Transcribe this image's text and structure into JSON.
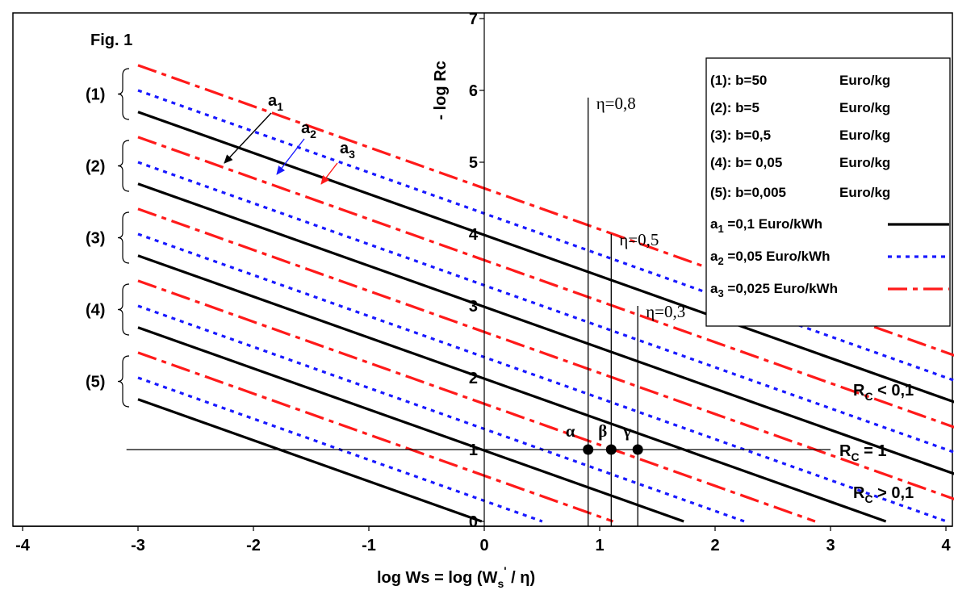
{
  "chart_data": {
    "type": "line",
    "title": "Fig. 1",
    "xlabel": "log Ws = log (W",
    "xlabel_sub": "s",
    "xlabel_sup": "'",
    "xlabel_end": " / η)",
    "ylabel": "- log Rc",
    "xlim": [
      -4,
      4
    ],
    "ylim": [
      0,
      7
    ],
    "x_ticks": [
      "-4",
      "-3",
      "-2",
      "-1",
      "0",
      "1",
      "2",
      "3",
      "4"
    ],
    "y_ticks": [
      "0",
      "1",
      "2",
      "3",
      "4",
      "5",
      "6",
      "7"
    ],
    "grid": false,
    "slope": -0.571,
    "x_start": -3,
    "groups": [
      {
        "label": "(1)",
        "legend": "(1): b=50",
        "unit": "Euro/kg"
      },
      {
        "label": "(2)",
        "legend": "(2): b=5",
        "unit": "Euro/kg"
      },
      {
        "label": "(3)",
        "legend": "(3): b=0,5",
        "unit": "Euro/kg"
      },
      {
        "label": "(4)",
        "legend": "(4): b= 0,05",
        "unit": "Euro/kg"
      },
      {
        "label": "(5)",
        "legend": "(5): b=0,005",
        "unit": "Euro/kg"
      }
    ],
    "series": [
      {
        "name": "a",
        "sub": "1",
        "legend_rest": " =0,1 Euro/kWh",
        "color": "#000000",
        "dash": "solid",
        "lines": [
          {
            "group": 1,
            "y_at_x_start": 5.7
          },
          {
            "group": 2,
            "y_at_x_start": 4.7
          },
          {
            "group": 3,
            "y_at_x_start": 3.7
          },
          {
            "group": 4,
            "y_at_x_start": 2.7
          },
          {
            "group": 5,
            "y_at_x_start": 1.7
          }
        ]
      },
      {
        "name": "a",
        "sub": "2",
        "legend_rest": " =0,05 Euro/kWh",
        "color": "#1a1aff",
        "dash": "dotted",
        "lines": [
          {
            "group": 1,
            "y_at_x_start": 6.0
          },
          {
            "group": 2,
            "y_at_x_start": 5.0
          },
          {
            "group": 3,
            "y_at_x_start": 4.0
          },
          {
            "group": 4,
            "y_at_x_start": 3.0
          },
          {
            "group": 5,
            "y_at_x_start": 2.0
          }
        ]
      },
      {
        "name": "a",
        "sub": "3",
        "legend_rest": " =0,025 Euro/kWh",
        "color": "#ff1a1a",
        "dash": "dashdot",
        "lines": [
          {
            "group": 1,
            "y_at_x_start": 6.35
          },
          {
            "group": 2,
            "y_at_x_start": 5.35
          },
          {
            "group": 3,
            "y_at_x_start": 4.35
          },
          {
            "group": 4,
            "y_at_x_start": 3.35
          },
          {
            "group": 5,
            "y_at_x_start": 2.35
          }
        ]
      }
    ],
    "eta_lines": [
      {
        "label": "η=0,8",
        "x": 0.9,
        "y_top": 5.9
      },
      {
        "label": "η=0,5",
        "x": 1.1,
        "y_top": 4.0
      },
      {
        "label": "η=0,3",
        "x": 1.33,
        "y_top": 3.0
      }
    ],
    "points": [
      {
        "label": "α",
        "x": 0.9,
        "y": 1.0
      },
      {
        "label": "β",
        "x": 1.1,
        "y": 1.0
      },
      {
        "label": "γ",
        "x": 1.33,
        "y": 1.0
      }
    ],
    "rc_line": {
      "y": 1.0,
      "x_from": -3.1,
      "x_to": 3.0
    },
    "annotations": {
      "rc_lt_pre": "R",
      "rc_lt_sub": "C",
      "rc_lt_post": " < 0,1",
      "rc_eq_pre": "R",
      "rc_eq_sub": "C",
      "rc_eq_post": " = 1",
      "rc_gt_pre": "R",
      "rc_gt_sub": "C",
      "rc_gt_post": " > 0,1"
    },
    "arrow_labels": [
      {
        "name": "a",
        "sub": "1",
        "color": "#000000"
      },
      {
        "name": "a",
        "sub": "2",
        "color": "#1a1aff"
      },
      {
        "name": "a",
        "sub": "3",
        "color": "#ff1a1a"
      }
    ]
  }
}
